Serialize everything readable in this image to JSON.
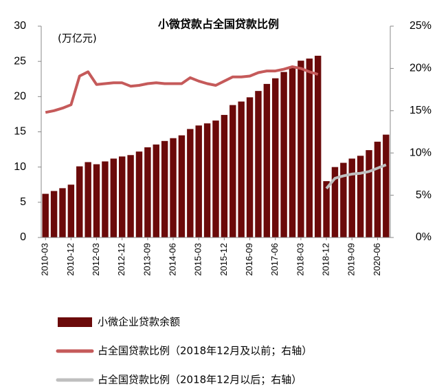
{
  "chart_data": {
    "type": "bar_line",
    "title": "小微贷款占全国贷款比例",
    "y_label": "(万亿元)",
    "categories": [
      "2010-03",
      null,
      null,
      "2010-12",
      null,
      null,
      "2012-03",
      null,
      null,
      "2012-12",
      null,
      null,
      "2013-09",
      null,
      null,
      "2014-06",
      null,
      null,
      "2015-03",
      null,
      null,
      "2015-12",
      null,
      null,
      "2016-09",
      null,
      null,
      "2017-06",
      null,
      null,
      "2018-03",
      null,
      null,
      "2018-12",
      null,
      null,
      "2019-09",
      null,
      null,
      "2020-06",
      null
    ],
    "series": [
      {
        "name": "小微企业贷款余额",
        "type": "bar",
        "color": "#6b0a0a",
        "values": [
          6.2,
          6.6,
          7.0,
          7.5,
          10.1,
          10.7,
          10.4,
          10.8,
          11.2,
          11.5,
          11.7,
          12.2,
          12.8,
          13.2,
          13.7,
          14.1,
          14.5,
          15.4,
          15.9,
          16.2,
          16.6,
          17.4,
          18.8,
          19.3,
          19.9,
          20.8,
          21.8,
          22.6,
          23.5,
          24.3,
          25.1,
          25.4,
          25.8,
          8.0,
          10.0,
          10.6,
          11.2,
          11.6,
          12.4,
          13.6,
          14.6
        ]
      },
      {
        "name": "占全国贷款比例（2018年12月及以前；右轴）",
        "type": "line",
        "axis": "y2",
        "color": "#c55a5a",
        "values": [
          14.8,
          15.0,
          15.3,
          15.7,
          19.1,
          19.6,
          18.1,
          18.2,
          18.3,
          18.3,
          17.9,
          18.0,
          18.2,
          18.3,
          18.2,
          18.2,
          18.2,
          18.9,
          18.5,
          18.2,
          18.0,
          18.5,
          19.0,
          19.0,
          19.1,
          19.5,
          19.7,
          19.7,
          19.9,
          20.2,
          20.0,
          19.6,
          19.3,
          null,
          null,
          null,
          null,
          null,
          null,
          null,
          null
        ]
      },
      {
        "name": "占全国贷款比例（2018年12月以后；右轴）",
        "type": "line",
        "axis": "y2",
        "color": "#bfbfbf",
        "values": [
          null,
          null,
          null,
          null,
          null,
          null,
          null,
          null,
          null,
          null,
          null,
          null,
          null,
          null,
          null,
          null,
          null,
          null,
          null,
          null,
          null,
          null,
          null,
          null,
          null,
          null,
          null,
          null,
          null,
          null,
          null,
          null,
          null,
          5.8,
          7.0,
          7.3,
          7.5,
          7.6,
          7.8,
          8.2,
          8.6
        ]
      }
    ],
    "ylim": [
      0,
      30
    ],
    "yticks": [
      0,
      5,
      10,
      15,
      20,
      25,
      30
    ],
    "y2lim": [
      0,
      25
    ],
    "y2ticks": [
      {
        "value": 0,
        "label": "0%"
      },
      {
        "value": 5,
        "label": "5%"
      },
      {
        "value": 10,
        "label": "10%"
      },
      {
        "value": 15,
        "label": "15%"
      },
      {
        "value": 20,
        "label": "20%"
      },
      {
        "value": 25,
        "label": "25%"
      }
    ],
    "legend": "bottom"
  }
}
